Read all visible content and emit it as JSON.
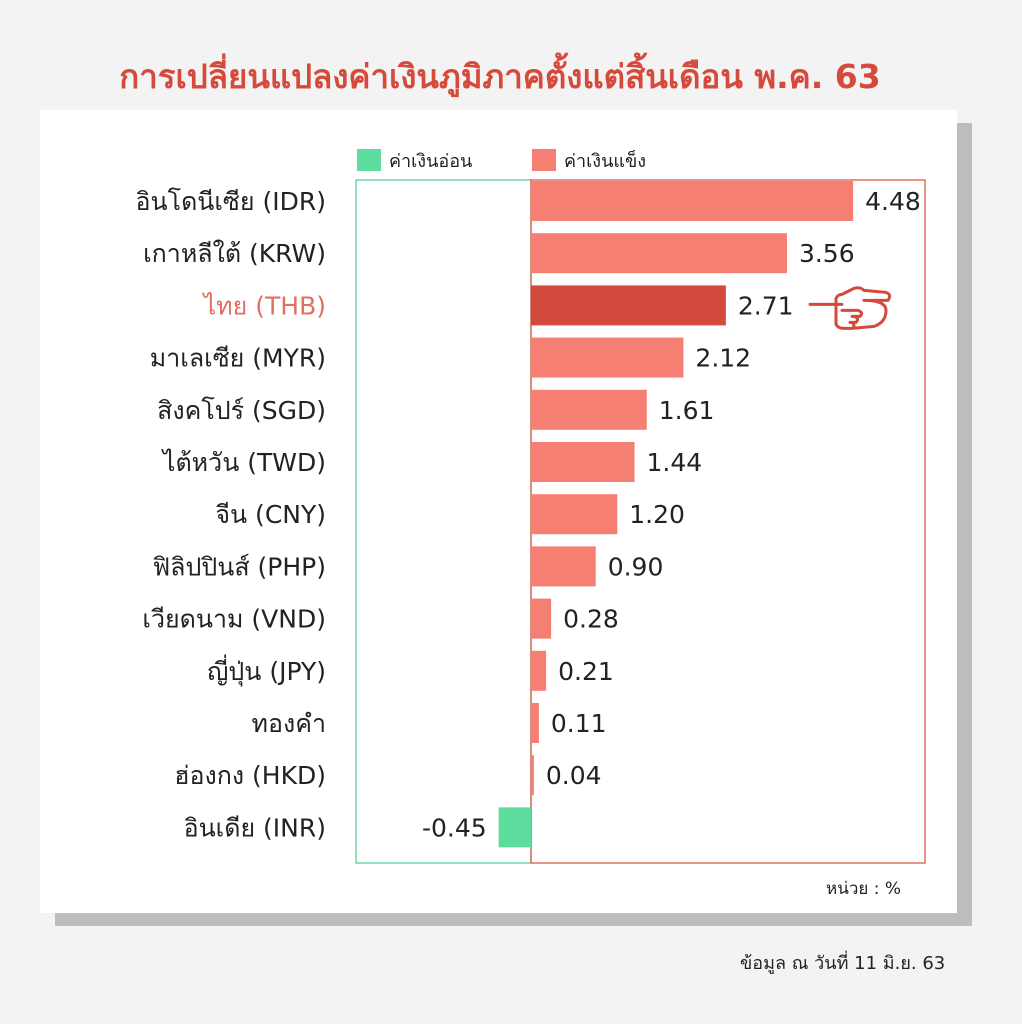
{
  "title": "การเปลี่ยนแปลงค่าเงินภูมิภาคตั้งแต่สิ้นเดือน พ.ค. 63",
  "unit_label": "หน่วย : %",
  "source_note": "ข้อมูล ณ วันที่ 11 มิ.ย. 63",
  "colors": {
    "positive": "#f47f72",
    "highlight": "#d34a3c",
    "negative": "#5cdd9d",
    "weak_border": "#6fd7a4",
    "strong_border": "#e0705f",
    "highlight_label": "#e0705f",
    "label": "#222222"
  },
  "chart_data": {
    "type": "bar",
    "orientation": "horizontal",
    "categories": [
      "อินโดนีเซีย (IDR)",
      "เกาหลีใต้ (KRW)",
      "ไทย (THB)",
      "มาเลเซีย (MYR)",
      "สิงคโปร์ (SGD)",
      "ไต้หวัน (TWD)",
      "จีน (CNY)",
      "ฟิลิปปินส์ (PHP)",
      "เวียดนาม (VND)",
      "ญี่ปุ่น (JPY)",
      "ทองคำ",
      "ฮ่องกง (HKD)",
      "อินเดีย (INR)"
    ],
    "values": [
      4.48,
      3.56,
      2.71,
      2.12,
      1.61,
      1.44,
      1.2,
      0.9,
      0.28,
      0.21,
      0.11,
      0.04,
      -0.45
    ],
    "value_labels": [
      "4.48",
      "3.56",
      "2.71",
      "2.12",
      "1.61",
      "1.44",
      "1.20",
      "0.90",
      "0.28",
      "0.21",
      "0.11",
      "0.04",
      "-0.45"
    ],
    "highlight_category": "ไทย (THB)",
    "legend": [
      {
        "name": "ค่าเงินอ่อน",
        "color": "#5cdd9d"
      },
      {
        "name": "ค่าเงินแข็ง",
        "color": "#f47f72"
      }
    ],
    "legend_position": "top"
  }
}
